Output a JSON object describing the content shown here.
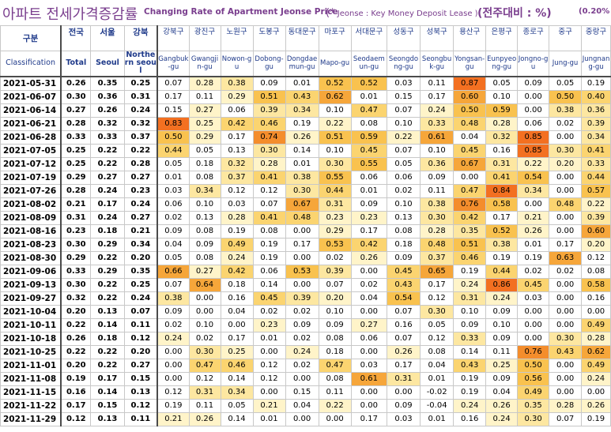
{
  "title": {
    "korean": "아파트 전세가격증감률",
    "english": "Changing Rate of Apartment Jeonse Price",
    "note_star": "(*",
    "note_text": " Jeonse : Key Money Deposit Lease )",
    "unit": "(전주대비 : %)",
    "extra": "(0.20% ,"
  },
  "header": {
    "classification_kr": "구분",
    "classification_en": "Classification",
    "columns": [
      {
        "kr": "전국",
        "en": "Total",
        "bold": true
      },
      {
        "kr": "서울",
        "en": "Seoul",
        "bold": true
      },
      {
        "kr": "강북",
        "en": "Northern seoul",
        "bold": true
      },
      {
        "kr": "강북구",
        "en": "Gangbuk-gu"
      },
      {
        "kr": "광진구",
        "en": "Gwangjin-gu"
      },
      {
        "kr": "노원구",
        "en": "Nowon-gu"
      },
      {
        "kr": "도봉구",
        "en": "Dobong-gu"
      },
      {
        "kr": "동대문구",
        "en": "Dongdaemun-gu"
      },
      {
        "kr": "마포구",
        "en": "Mapo-gu"
      },
      {
        "kr": "서대문구",
        "en": "Seodaemun-gu"
      },
      {
        "kr": "성동구",
        "en": "Seongdong-gu"
      },
      {
        "kr": "성북구",
        "en": "Seongbuk-gu"
      },
      {
        "kr": "용산구",
        "en": "Yongsan-gu"
      },
      {
        "kr": "은평구",
        "en": "Eunpyeong-gu"
      },
      {
        "kr": "종로구",
        "en": "Jongno-gu"
      },
      {
        "kr": "중구",
        "en": "Jung-gu"
      },
      {
        "kr": "중랑구",
        "en": "Jungnang-gu"
      }
    ]
  },
  "rows": [
    {
      "date": "2021-05-31",
      "values": [
        "0.26",
        "0.35",
        "0.25",
        "0.07",
        "0.28",
        "0.38",
        "0.09",
        "0.01",
        "0.52",
        "0.52",
        "0.03",
        "0.11",
        "0.87",
        "0.05",
        "0.09",
        "0.05",
        "0.19"
      ]
    },
    {
      "date": "2021-06-07",
      "values": [
        "0.30",
        "0.36",
        "0.31",
        "0.17",
        "0.11",
        "0.29",
        "0.51",
        "0.43",
        "0.62",
        "0.01",
        "0.15",
        "0.17",
        "0.60",
        "0.10",
        "0.00",
        "0.50",
        "0.40"
      ]
    },
    {
      "date": "2021-06-14",
      "values": [
        "0.27",
        "0.26",
        "0.24",
        "0.15",
        "0.27",
        "0.06",
        "0.39",
        "0.34",
        "0.10",
        "0.47",
        "0.07",
        "0.24",
        "0.50",
        "0.59",
        "0.00",
        "0.38",
        "0.36"
      ]
    },
    {
      "date": "2021-06-21",
      "values": [
        "0.28",
        "0.32",
        "0.32",
        "0.83",
        "0.25",
        "0.42",
        "0.46",
        "0.19",
        "0.22",
        "0.08",
        "0.10",
        "0.33",
        "0.48",
        "0.28",
        "0.06",
        "0.02",
        "0.39"
      ]
    },
    {
      "date": "2021-06-28",
      "values": [
        "0.33",
        "0.33",
        "0.37",
        "0.50",
        "0.29",
        "0.17",
        "0.74",
        "0.26",
        "0.51",
        "0.59",
        "0.22",
        "0.61",
        "0.04",
        "0.32",
        "0.85",
        "0.00",
        "0.34"
      ]
    },
    {
      "date": "2021-07-05",
      "values": [
        "0.25",
        "0.22",
        "0.22",
        "0.44",
        "0.05",
        "0.13",
        "0.30",
        "0.14",
        "0.10",
        "0.45",
        "0.07",
        "0.10",
        "0.45",
        "0.16",
        "0.85",
        "0.30",
        "0.41"
      ]
    },
    {
      "date": "2021-07-12",
      "values": [
        "0.25",
        "0.22",
        "0.28",
        "0.05",
        "0.18",
        "0.32",
        "0.28",
        "0.01",
        "0.30",
        "0.55",
        "0.05",
        "0.36",
        "0.67",
        "0.31",
        "0.22",
        "0.20",
        "0.33"
      ]
    },
    {
      "date": "2021-07-19",
      "values": [
        "0.29",
        "0.27",
        "0.27",
        "0.01",
        "0.08",
        "0.37",
        "0.41",
        "0.38",
        "0.55",
        "0.06",
        "0.06",
        "0.09",
        "0.00",
        "0.41",
        "0.54",
        "0.00",
        "0.44"
      ]
    },
    {
      "date": "2021-07-26",
      "values": [
        "0.28",
        "0.24",
        "0.23",
        "0.03",
        "0.34",
        "0.12",
        "0.12",
        "0.30",
        "0.44",
        "0.01",
        "0.02",
        "0.11",
        "0.47",
        "0.84",
        "0.34",
        "0.00",
        "0.57"
      ]
    },
    {
      "date": "2021-08-02",
      "values": [
        "0.21",
        "0.17",
        "0.24",
        "0.06",
        "0.10",
        "0.03",
        "0.07",
        "0.67",
        "0.31",
        "0.09",
        "0.10",
        "0.38",
        "0.76",
        "0.58",
        "0.00",
        "0.48",
        "0.22"
      ]
    },
    {
      "date": "2021-08-09",
      "values": [
        "0.31",
        "0.24",
        "0.27",
        "0.02",
        "0.13",
        "0.28",
        "0.41",
        "0.48",
        "0.23",
        "0.23",
        "0.13",
        "0.30",
        "0.42",
        "0.17",
        "0.21",
        "0.00",
        "0.39"
      ]
    },
    {
      "date": "2021-08-16",
      "values": [
        "0.23",
        "0.18",
        "0.21",
        "0.09",
        "0.08",
        "0.19",
        "0.08",
        "0.00",
        "0.29",
        "0.17",
        "0.08",
        "0.28",
        "0.35",
        "0.52",
        "0.26",
        "0.00",
        "0.60"
      ]
    },
    {
      "date": "2021-08-23",
      "values": [
        "0.30",
        "0.29",
        "0.34",
        "0.04",
        "0.09",
        "0.49",
        "0.19",
        "0.17",
        "0.53",
        "0.42",
        "0.18",
        "0.48",
        "0.51",
        "0.38",
        "0.01",
        "0.17",
        "0.20"
      ]
    },
    {
      "date": "2021-08-30",
      "values": [
        "0.29",
        "0.22",
        "0.20",
        "0.05",
        "0.08",
        "0.24",
        "0.19",
        "0.00",
        "0.02",
        "0.26",
        "0.09",
        "0.37",
        "0.46",
        "0.19",
        "0.19",
        "0.63",
        "0.12"
      ]
    },
    {
      "date": "2021-09-06",
      "values": [
        "0.33",
        "0.29",
        "0.35",
        "0.66",
        "0.27",
        "0.42",
        "0.06",
        "0.53",
        "0.39",
        "0.00",
        "0.45",
        "0.65",
        "0.19",
        "0.44",
        "0.02",
        "0.02",
        "0.08"
      ]
    },
    {
      "date": "2021-09-13",
      "values": [
        "0.30",
        "0.22",
        "0.25",
        "0.07",
        "0.64",
        "0.18",
        "0.14",
        "0.00",
        "0.07",
        "0.02",
        "0.43",
        "0.17",
        "0.24",
        "0.86",
        "0.45",
        "0.00",
        "0.58"
      ]
    },
    {
      "date": "2021-09-27",
      "values": [
        "0.32",
        "0.22",
        "0.24",
        "0.38",
        "0.00",
        "0.16",
        "0.45",
        "0.39",
        "0.20",
        "0.04",
        "0.54",
        "0.12",
        "0.31",
        "0.24",
        "0.03",
        "0.00",
        "0.16"
      ]
    },
    {
      "date": "2021-10-04",
      "values": [
        "0.20",
        "0.13",
        "0.07",
        "0.09",
        "0.00",
        "0.04",
        "0.02",
        "0.02",
        "0.10",
        "0.00",
        "0.07",
        "0.30",
        "0.10",
        "0.09",
        "0.00",
        "0.00",
        "0.00"
      ]
    },
    {
      "date": "2021-10-11",
      "values": [
        "0.22",
        "0.14",
        "0.11",
        "0.02",
        "0.10",
        "0.00",
        "0.23",
        "0.09",
        "0.09",
        "0.27",
        "0.16",
        "0.05",
        "0.09",
        "0.10",
        "0.00",
        "0.00",
        "0.49"
      ]
    },
    {
      "date": "2021-10-18",
      "values": [
        "0.26",
        "0.18",
        "0.12",
        "0.24",
        "0.02",
        "0.17",
        "0.01",
        "0.02",
        "0.08",
        "0.06",
        "0.07",
        "0.12",
        "0.33",
        "0.09",
        "0.00",
        "0.30",
        "0.28"
      ]
    },
    {
      "date": "2021-10-25",
      "values": [
        "0.22",
        "0.22",
        "0.20",
        "0.00",
        "0.30",
        "0.25",
        "0.00",
        "0.24",
        "0.18",
        "0.00",
        "0.26",
        "0.08",
        "0.14",
        "0.11",
        "0.76",
        "0.43",
        "0.62"
      ]
    },
    {
      "date": "2021-11-01",
      "values": [
        "0.20",
        "0.22",
        "0.27",
        "0.00",
        "0.47",
        "0.46",
        "0.12",
        "0.02",
        "0.47",
        "0.03",
        "0.17",
        "0.04",
        "0.43",
        "0.25",
        "0.50",
        "0.00",
        "0.49"
      ]
    },
    {
      "date": "2021-11-08",
      "values": [
        "0.19",
        "0.17",
        "0.15",
        "0.00",
        "0.12",
        "0.14",
        "0.12",
        "0.00",
        "0.08",
        "0.61",
        "0.31",
        "0.01",
        "0.19",
        "0.09",
        "0.56",
        "0.00",
        "0.24"
      ]
    },
    {
      "date": "2021-11-15",
      "values": [
        "0.16",
        "0.14",
        "0.13",
        "0.12",
        "0.31",
        "0.34",
        "0.00",
        "0.15",
        "0.11",
        "0.00",
        "0.00",
        "-0.02",
        "0.19",
        "0.04",
        "0.49",
        "0.00",
        "0.00"
      ]
    },
    {
      "date": "2021-11-22",
      "values": [
        "0.17",
        "0.15",
        "0.12",
        "0.19",
        "0.11",
        "0.05",
        "0.21",
        "0.04",
        "0.22",
        "0.00",
        "0.09",
        "-0.04",
        "0.24",
        "0.26",
        "0.35",
        "0.28",
        "0.26"
      ]
    },
    {
      "date": "2021-11-29",
      "values": [
        "0.12",
        "0.13",
        "0.11",
        "0.21",
        "0.26",
        "0.14",
        "0.01",
        "0.00",
        "0.00",
        "0.17",
        "0.03",
        "0.01",
        "0.16",
        "0.24",
        "0.30",
        "0.07",
        "0.19"
      ]
    }
  ],
  "colors": {
    "title": "#7a3e8e",
    "header_text": "#1f3a8a",
    "heat_low": "#fff7d6",
    "heat_mid": "#f9c45a",
    "heat_high": "#f47b24",
    "gridline": "#c8c8c8"
  }
}
